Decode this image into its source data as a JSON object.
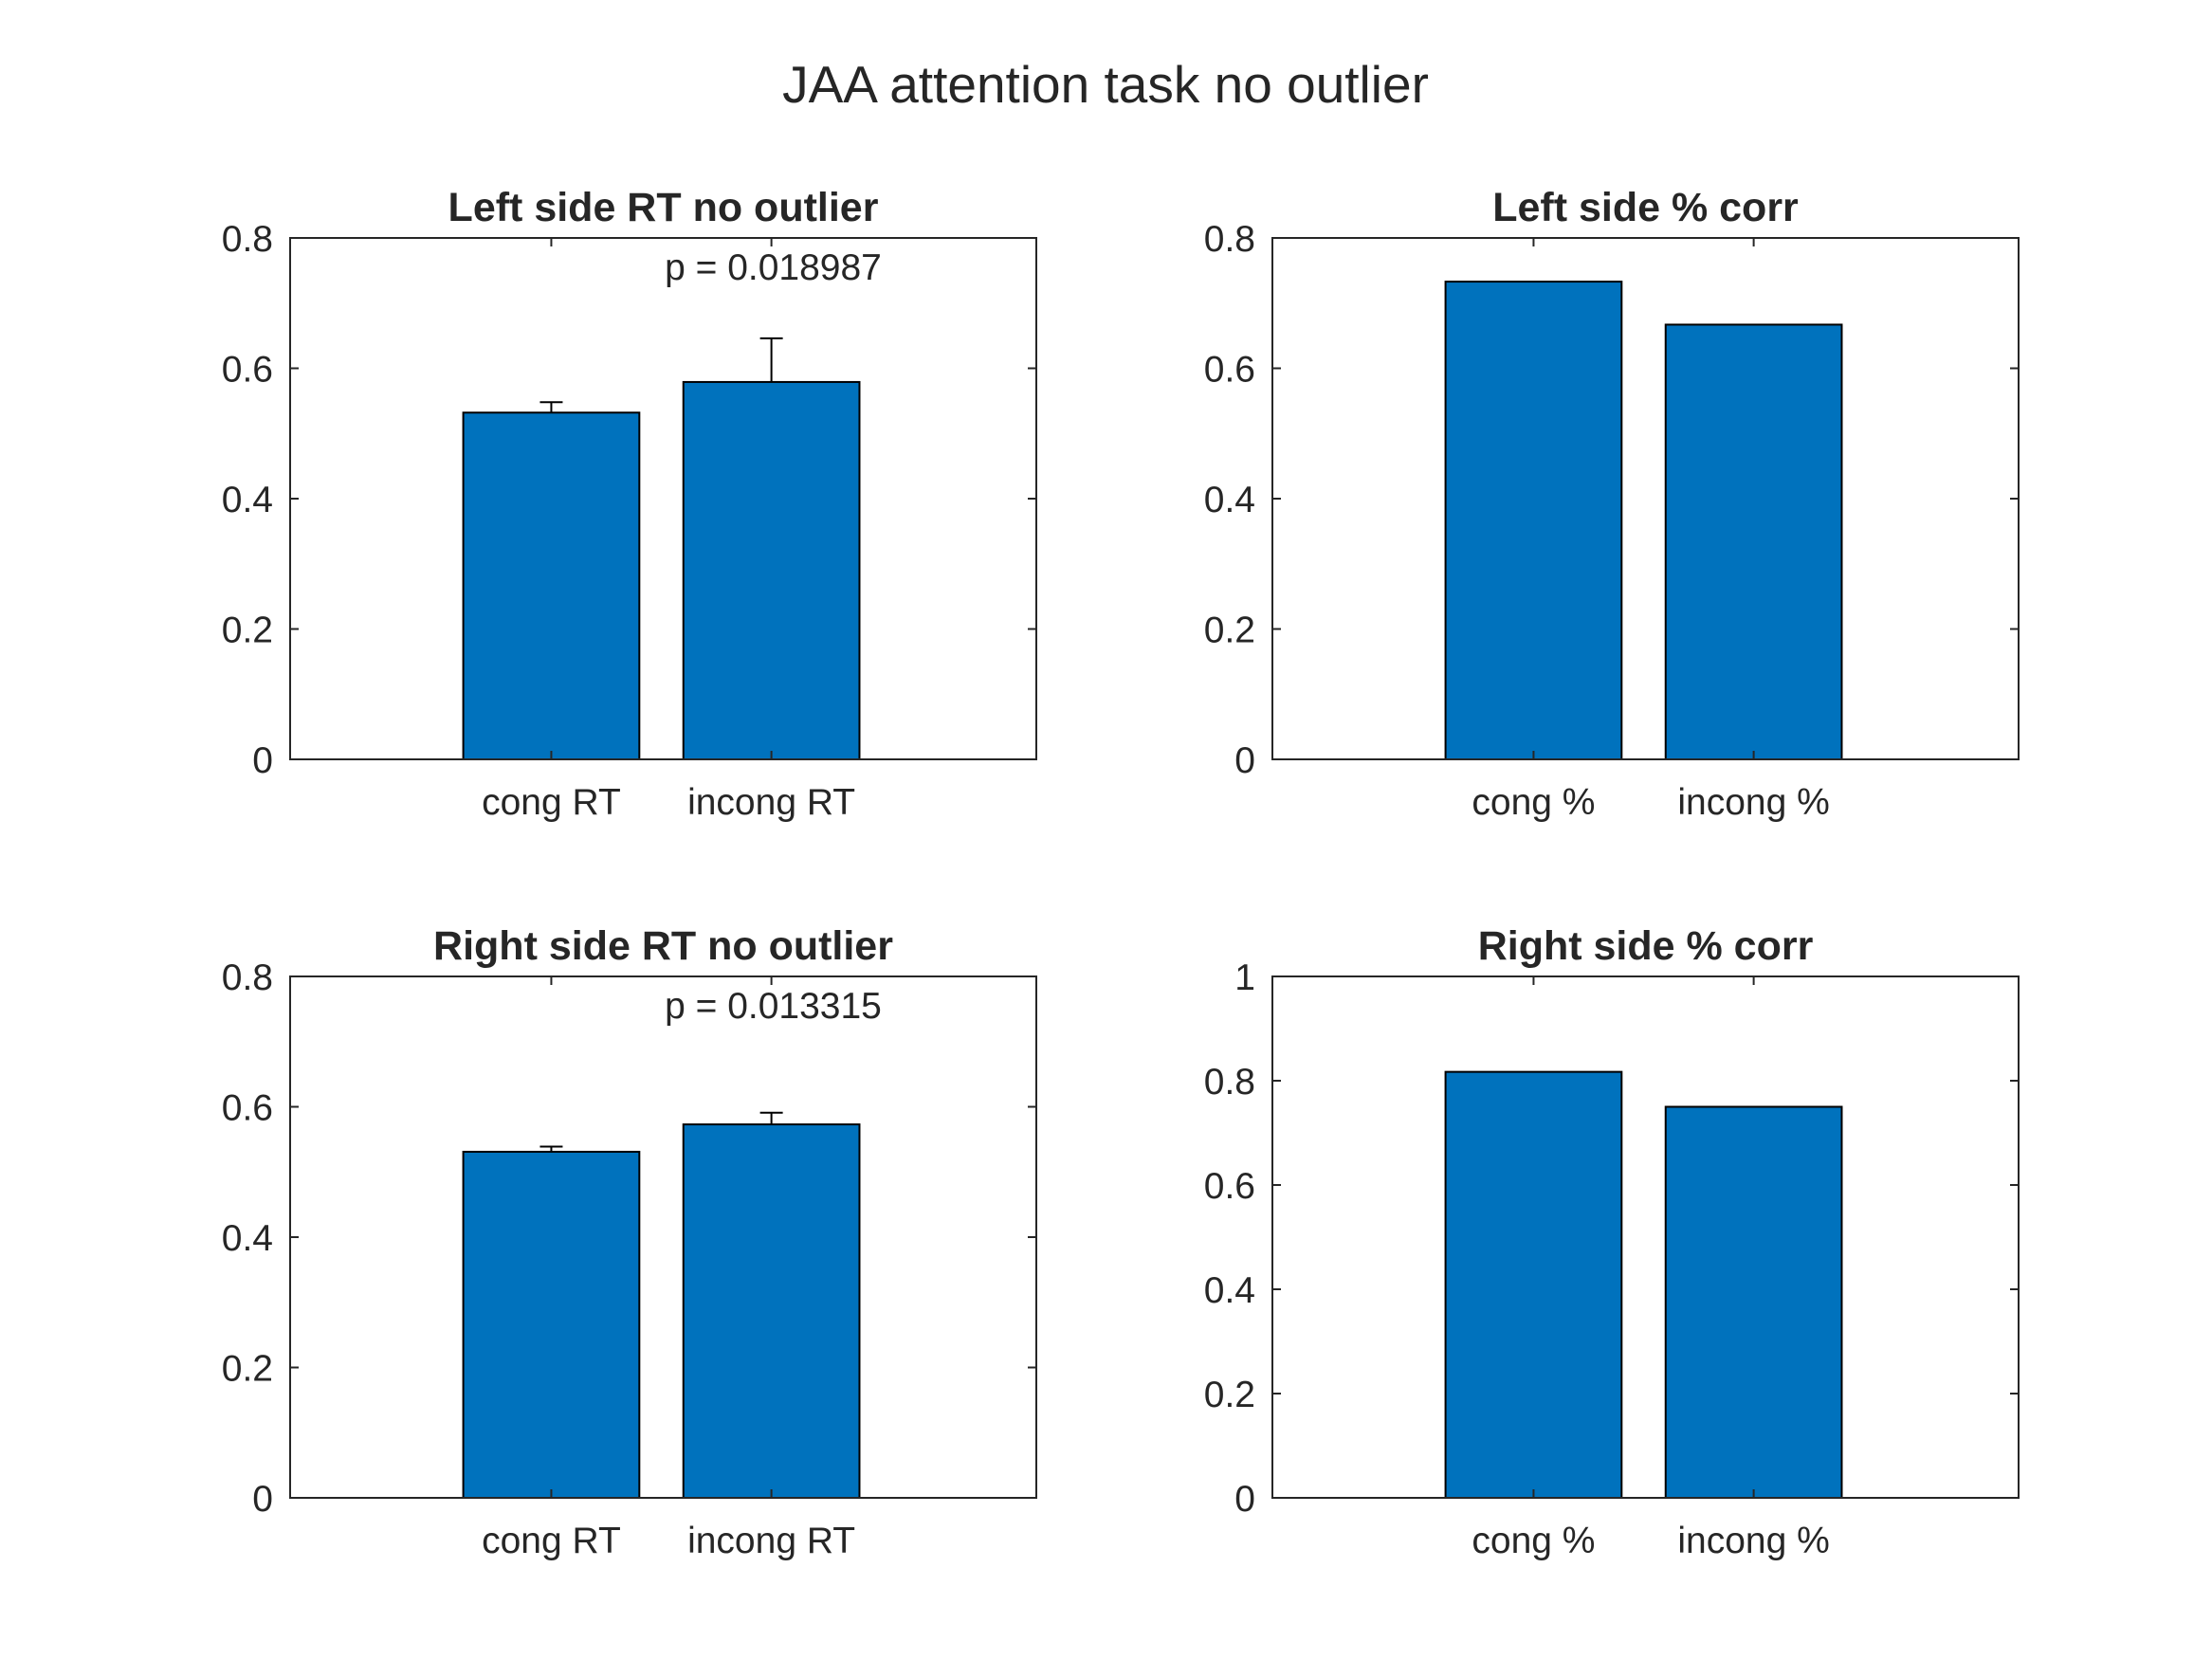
{
  "figure": {
    "suptitle": "JAA attention task no outlier",
    "bar_color": "#0072BD",
    "background": "#FFFFFF"
  },
  "chart_data": [
    {
      "type": "bar",
      "title": "Left side RT no outlier",
      "categories": [
        "cong RT",
        "incong RT"
      ],
      "values": [
        0.532,
        0.579
      ],
      "error_upper": [
        0.016,
        0.067
      ],
      "ylim": [
        0,
        0.8
      ],
      "yticks": [
        0,
        0.2,
        0.4,
        0.6,
        0.8
      ],
      "ytick_labels": [
        "0",
        "0.2",
        "0.4",
        "0.6",
        "0.8"
      ],
      "annotation": "p = 0.018987",
      "xlabel": "",
      "ylabel": "",
      "grid": false
    },
    {
      "type": "bar",
      "title": "Left side % corr",
      "categories": [
        "cong %",
        "incong %"
      ],
      "values": [
        0.733,
        0.667
      ],
      "ylim": [
        0,
        0.8
      ],
      "yticks": [
        0,
        0.2,
        0.4,
        0.6,
        0.8
      ],
      "ytick_labels": [
        "0",
        "0.2",
        "0.4",
        "0.6",
        "0.8"
      ],
      "xlabel": "",
      "ylabel": "",
      "grid": false
    },
    {
      "type": "bar",
      "title": "Right side RT no outlier",
      "categories": [
        "cong RT",
        "incong RT"
      ],
      "values": [
        0.531,
        0.573
      ],
      "error_upper": [
        0.008,
        0.018
      ],
      "ylim": [
        0,
        0.8
      ],
      "yticks": [
        0,
        0.2,
        0.4,
        0.6,
        0.8
      ],
      "ytick_labels": [
        "0",
        "0.2",
        "0.4",
        "0.6",
        "0.8"
      ],
      "annotation": "p = 0.013315",
      "xlabel": "",
      "ylabel": "",
      "grid": false
    },
    {
      "type": "bar",
      "title": "Right side % corr",
      "categories": [
        "cong %",
        "incong %"
      ],
      "values": [
        0.817,
        0.75
      ],
      "ylim": [
        0,
        1
      ],
      "yticks": [
        0,
        0.2,
        0.4,
        0.6,
        0.8,
        1
      ],
      "ytick_labels": [
        "0",
        "0.2",
        "0.4",
        "0.6",
        "0.8",
        "1"
      ],
      "xlabel": "",
      "ylabel": "",
      "grid": false
    }
  ]
}
